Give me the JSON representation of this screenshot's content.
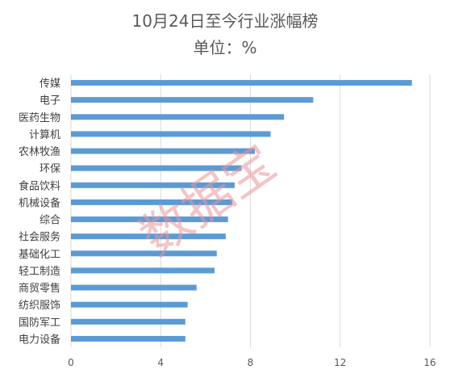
{
  "chart_data": {
    "type": "bar",
    "orientation": "horizontal",
    "title": "10月24日至今行业涨幅榜",
    "subtitle": "单位：%",
    "categories": [
      "传媒",
      "电子",
      "医药生物",
      "计算机",
      "农林牧渔",
      "环保",
      "食品饮料",
      "机械设备",
      "综合",
      "社会服务",
      "基础化工",
      "轻工制造",
      "商贸零售",
      "纺织服饰",
      "国防军工",
      "电力设备"
    ],
    "values": [
      15.2,
      10.8,
      9.5,
      8.9,
      8.2,
      7.6,
      7.3,
      7.2,
      7.0,
      6.9,
      6.5,
      6.4,
      5.6,
      5.2,
      5.1,
      5.1
    ],
    "xlim": [
      0,
      16
    ],
    "xticks": [
      0,
      4,
      8,
      12,
      16
    ],
    "grid": true,
    "legend": "none",
    "bar_color": "#5b9bd5",
    "grid_color": "#d9d9d9"
  },
  "watermark": "数据宝"
}
